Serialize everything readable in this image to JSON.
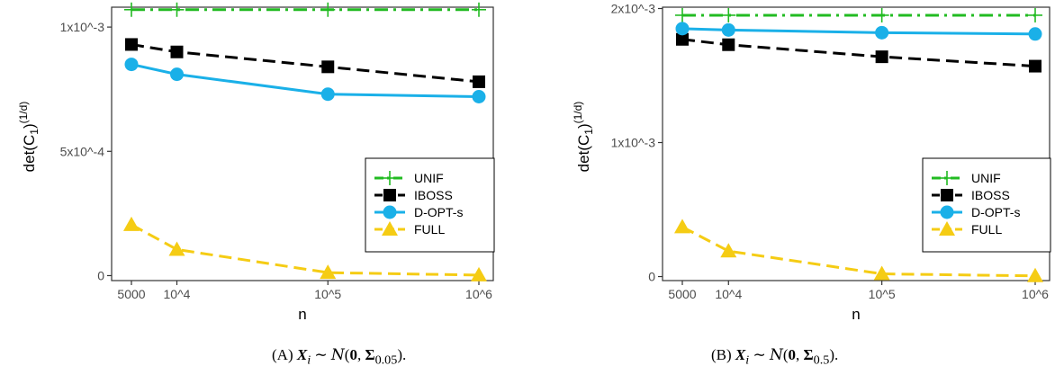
{
  "chart_data": [
    {
      "type": "line",
      "panel": "A",
      "xlabel": "n",
      "ylabel": "det(C",
      "ylabel_sub": "1",
      "ylabel_close": ")",
      "ylabel_sup": "(1/d)",
      "x_scale": "log",
      "x": [
        5000,
        10000,
        100000,
        1000000
      ],
      "x_tick_labels": [
        "5000",
        "10^4",
        "10^5",
        "10^6"
      ],
      "ylim": [
        -2e-05,
        0.00108
      ],
      "y_ticks": [
        0,
        0.0005,
        0.001
      ],
      "y_tick_labels": [
        "0",
        "5x10^-4",
        "1x10^-3"
      ],
      "legend_position": "right",
      "series": [
        {
          "name": "UNIF",
          "values": [
            0.00107,
            0.00107,
            0.00107,
            0.00107
          ],
          "color": "#22bb22",
          "dash": "dotdash",
          "marker": "plus"
        },
        {
          "name": "IBOSS",
          "values": [
            0.00093,
            0.0009,
            0.00084,
            0.00078
          ],
          "color": "#000000",
          "dash": "dashed",
          "marker": "square"
        },
        {
          "name": "D-OPT-s",
          "values": [
            0.00085,
            0.00081,
            0.00073,
            0.00072
          ],
          "color": "#1ab0e8",
          "dash": "solid",
          "marker": "circle"
        },
        {
          "name": "FULL",
          "values": [
            0.000205,
            0.000105,
            1.2e-05,
            2e-06
          ],
          "color": "#f5cc14",
          "dash": "dashed",
          "marker": "triangle"
        }
      ],
      "caption_label": "(A)",
      "caption_prefix": "X",
      "caption_sub_i": "i",
      "caption_rel": "∼",
      "caption_dist": "N",
      "caption_open": "(",
      "caption_zero": "0",
      "caption_comma": ",",
      "caption_sigma": "Σ",
      "caption_sigma_sub": "0.05",
      "caption_close": ").",
      "caption_left": "(A)"
    },
    {
      "type": "line",
      "panel": "B",
      "xlabel": "n",
      "ylabel": "det(C",
      "ylabel_sub": "1",
      "ylabel_close": ")",
      "ylabel_sup": "(1/d)",
      "x_scale": "log",
      "x": [
        5000,
        10000,
        100000,
        1000000
      ],
      "x_tick_labels": [
        "5000",
        "10^4",
        "10^5",
        "10^6"
      ],
      "ylim": [
        -3e-05,
        0.00201
      ],
      "y_ticks": [
        0,
        0.001,
        0.002
      ],
      "y_tick_labels": [
        "0",
        "1x10^-3",
        "2x10^-3"
      ],
      "legend_position": "right",
      "series": [
        {
          "name": "UNIF",
          "values": [
            0.00195,
            0.00195,
            0.00195,
            0.00195
          ],
          "color": "#22bb22",
          "dash": "dotdash",
          "marker": "plus"
        },
        {
          "name": "IBOSS",
          "values": [
            0.00177,
            0.00173,
            0.00164,
            0.00157
          ],
          "color": "#000000",
          "dash": "dashed",
          "marker": "square"
        },
        {
          "name": "D-OPT-s",
          "values": [
            0.00185,
            0.00184,
            0.00182,
            0.00181
          ],
          "color": "#1ab0e8",
          "dash": "solid",
          "marker": "circle"
        },
        {
          "name": "FULL",
          "values": [
            0.00037,
            0.00019,
            2e-05,
            5e-06
          ],
          "color": "#f5cc14",
          "dash": "dashed",
          "marker": "triangle"
        }
      ],
      "caption_label": "(B)",
      "caption_sigma_sub": "0.5"
    }
  ]
}
